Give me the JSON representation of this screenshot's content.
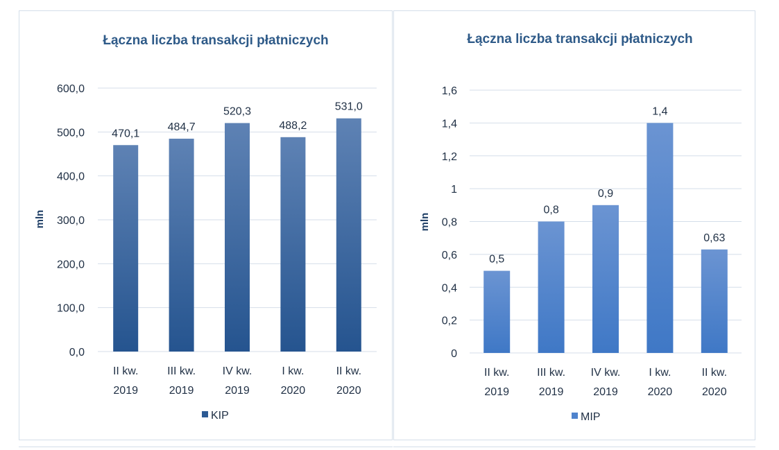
{
  "chart_data": [
    {
      "type": "bar",
      "title": "Łączna liczba transakcji płatniczych",
      "xlabel": "",
      "ylabel": "mln",
      "categories": [
        "II kw. 2019",
        "III kw. 2019",
        "IV kw. 2019",
        "I kw. 2020",
        "II kw. 2020"
      ],
      "series": [
        {
          "name": "KIP",
          "values": [
            470.1,
            484.7,
            520.3,
            488.2,
            531.0
          ]
        }
      ],
      "data_labels": [
        "470,1",
        "484,7",
        "520,3",
        "488,2",
        "531,0"
      ],
      "ylim": [
        0,
        600
      ],
      "y_ticks": [
        0,
        100,
        200,
        300,
        400,
        500,
        600
      ],
      "y_tick_labels": [
        "0,0",
        "100,0",
        "200,0",
        "300,0",
        "400,0",
        "500,0",
        "600,0"
      ],
      "grid": true,
      "legend": "bottom",
      "colors": {
        "bar_top": "#5e82b4",
        "bar_bottom": "#25548f",
        "legend_swatch": "#2c5a94"
      }
    },
    {
      "type": "bar",
      "title": "Łączna liczba transakcji płatniczych",
      "xlabel": "",
      "ylabel": "mln",
      "categories": [
        "II kw. 2019",
        "III kw. 2019",
        "IV kw. 2019",
        "I kw. 2020",
        "II kw. 2020"
      ],
      "series": [
        {
          "name": "MIP",
          "values": [
            0.5,
            0.8,
            0.9,
            1.4,
            0.63
          ]
        }
      ],
      "data_labels": [
        "0,5",
        "0,8",
        "0,9",
        "1,4",
        "0,63"
      ],
      "ylim": [
        0,
        1.6
      ],
      "y_ticks": [
        0,
        0.2,
        0.4,
        0.6,
        0.8,
        1.0,
        1.2,
        1.4,
        1.6
      ],
      "y_tick_labels": [
        "0",
        "0,2",
        "0,4",
        "0,6",
        "0,8",
        "1",
        "1,2",
        "1,4",
        "1,6"
      ],
      "grid": true,
      "legend": "bottom",
      "colors": {
        "bar_top": "#6b94d2",
        "bar_bottom": "#3f78c6",
        "legend_swatch": "#4f83cd"
      }
    }
  ]
}
